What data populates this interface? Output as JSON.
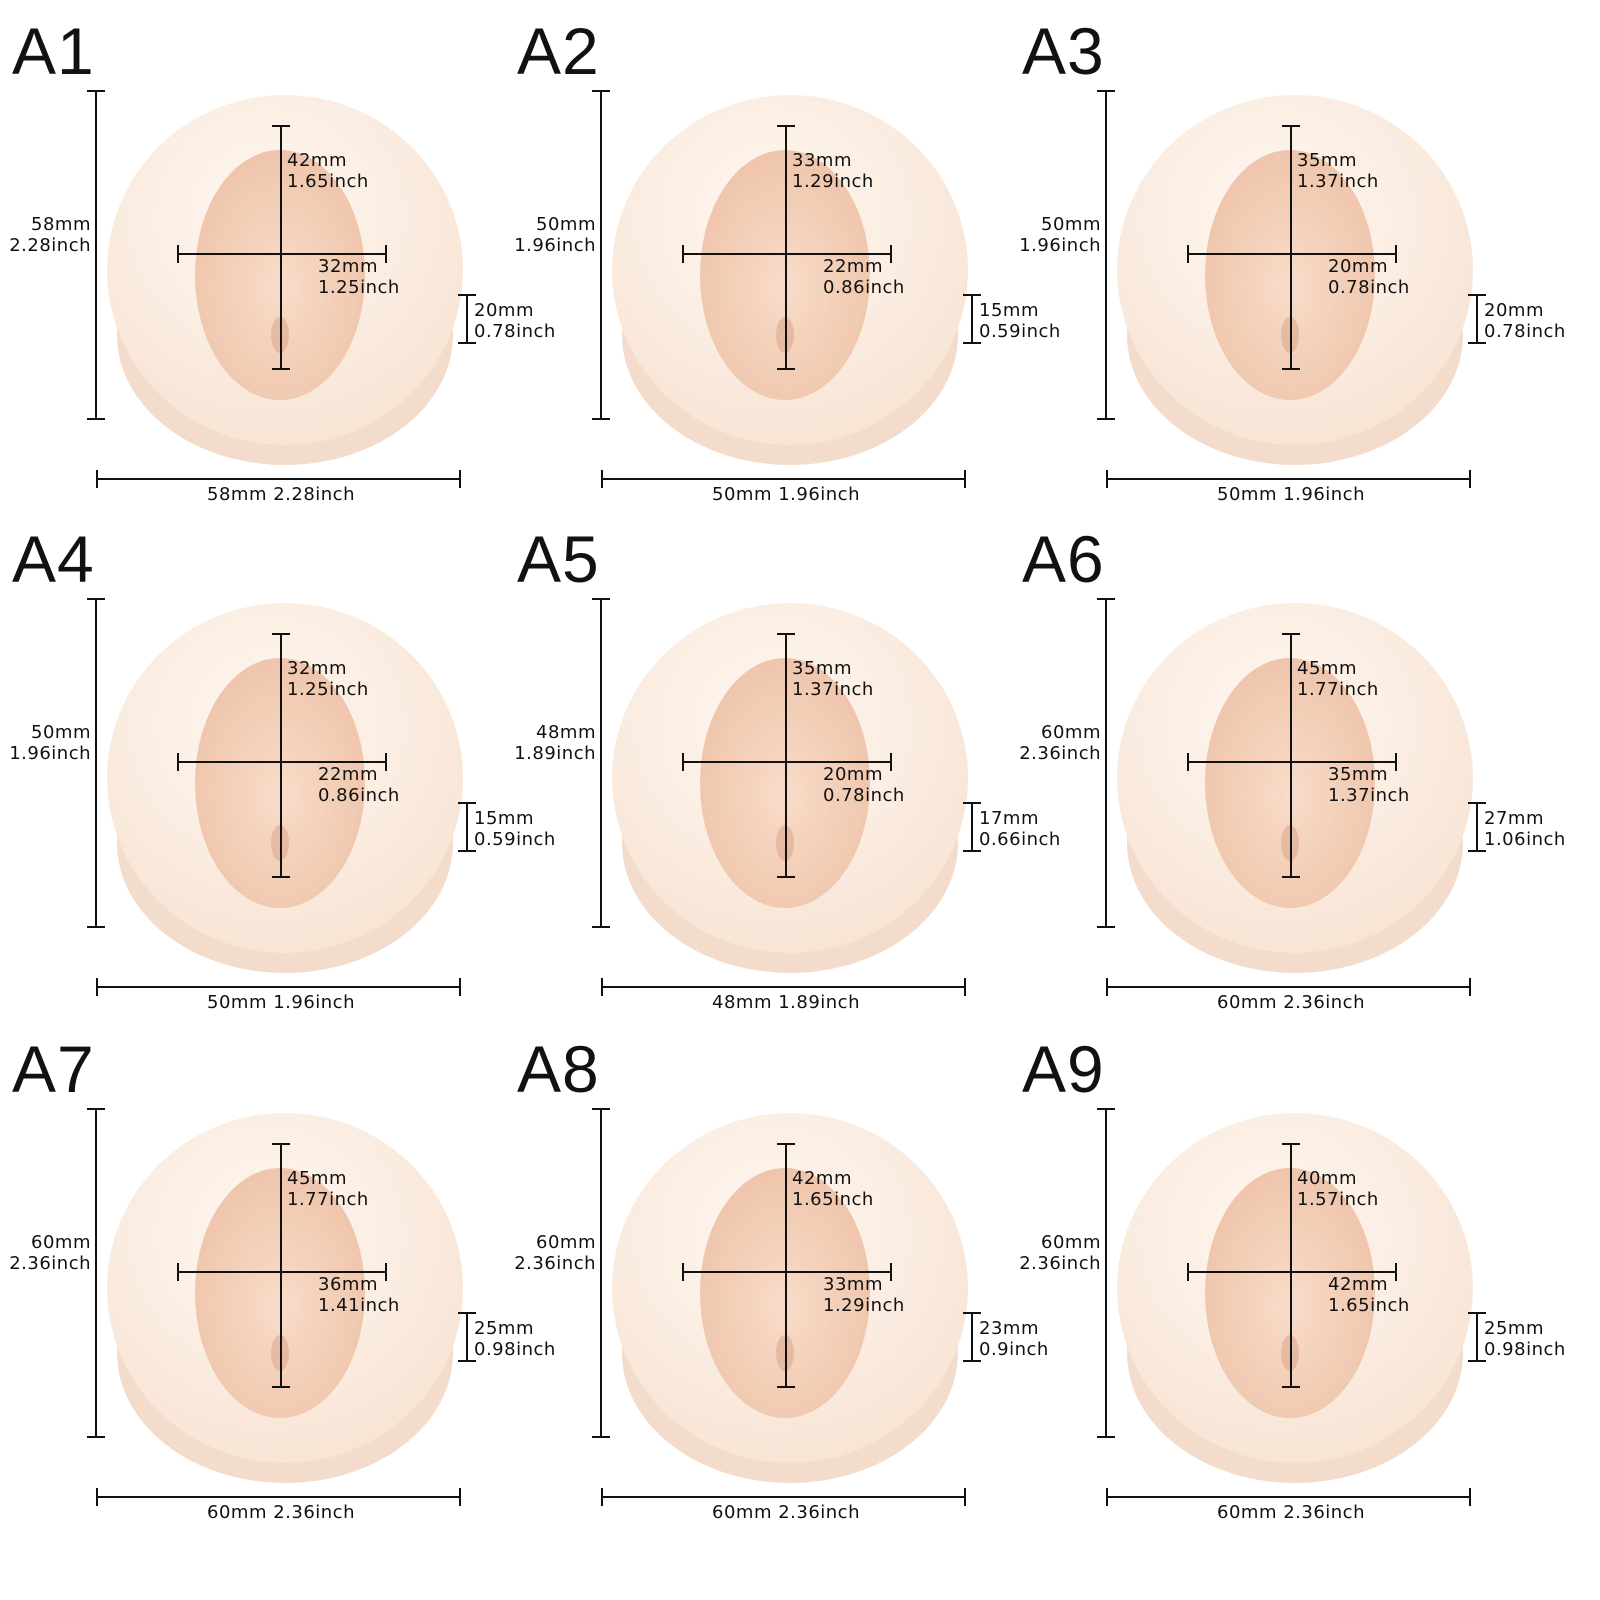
{
  "molds": [
    {
      "label": "A1",
      "height": [
        "58mm",
        "2.28inch"
      ],
      "width": "58mm 2.28inch",
      "face_h": [
        "42mm",
        "1.65inch"
      ],
      "face_w": [
        "32mm",
        "1.25inch"
      ],
      "depth": [
        "20mm",
        "0.78inch"
      ]
    },
    {
      "label": "A2",
      "height": [
        "50mm",
        "1.96inch"
      ],
      "width": "50mm 1.96inch",
      "face_h": [
        "33mm",
        "1.29inch"
      ],
      "face_w": [
        "22mm",
        "0.86inch"
      ],
      "depth": [
        "15mm",
        "0.59inch"
      ]
    },
    {
      "label": "A3",
      "height": [
        "50mm",
        "1.96inch"
      ],
      "width": "50mm 1.96inch",
      "face_h": [
        "35mm",
        "1.37inch"
      ],
      "face_w": [
        "20mm",
        "0.78inch"
      ],
      "depth": [
        "20mm",
        "0.78inch"
      ]
    },
    {
      "label": "A4",
      "height": [
        "50mm",
        "1.96inch"
      ],
      "width": "50mm 1.96inch",
      "face_h": [
        "32mm",
        "1.25inch"
      ],
      "face_w": [
        "22mm",
        "0.86inch"
      ],
      "depth": [
        "15mm",
        "0.59inch"
      ]
    },
    {
      "label": "A5",
      "height": [
        "48mm",
        "1.89inch"
      ],
      "width": "48mm 1.89inch",
      "face_h": [
        "35mm",
        "1.37inch"
      ],
      "face_w": [
        "20mm",
        "0.78inch"
      ],
      "depth": [
        "17mm",
        "0.66inch"
      ]
    },
    {
      "label": "A6",
      "height": [
        "60mm",
        "2.36inch"
      ],
      "width": "60mm 2.36inch",
      "face_h": [
        "45mm",
        "1.77inch"
      ],
      "face_w": [
        "35mm",
        "1.37inch"
      ],
      "depth": [
        "27mm",
        "1.06inch"
      ]
    },
    {
      "label": "A7",
      "height": [
        "60mm",
        "2.36inch"
      ],
      "width": "60mm 2.36inch",
      "face_h": [
        "45mm",
        "1.77inch"
      ],
      "face_w": [
        "36mm",
        "1.41inch"
      ],
      "depth": [
        "25mm",
        "0.98inch"
      ]
    },
    {
      "label": "A8",
      "height": [
        "60mm",
        "2.36inch"
      ],
      "width": "60mm 2.36inch",
      "face_h": [
        "42mm",
        "1.65inch"
      ],
      "face_w": [
        "33mm",
        "1.29inch"
      ],
      "depth": [
        "23mm",
        "0.9inch"
      ]
    },
    {
      "label": "A9",
      "height": [
        "60mm",
        "2.36inch"
      ],
      "width": "60mm 2.36inch",
      "face_h": [
        "40mm",
        "1.57inch"
      ],
      "face_w": [
        "42mm",
        "1.65inch"
      ],
      "depth": [
        "25mm",
        "0.98inch"
      ]
    }
  ],
  "colors": {
    "mold_light": "#fcf0e6",
    "mold_shade": "#f3dccb",
    "cavity": "#f6d7c3",
    "cavity_shade": "#e9bfa6",
    "line": "#111111"
  }
}
